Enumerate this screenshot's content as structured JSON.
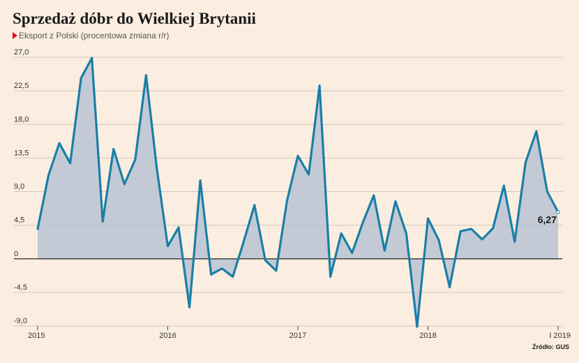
{
  "header": {
    "title": "Sprzedaż dóbr do Wielkiej Brytanii",
    "subtitle": "Eksport z Polski (procentowa zmiana r/r)"
  },
  "source": "Źródło: GUS",
  "colors": {
    "background": "#fbeee0",
    "line": "#1a7fa6",
    "area": "#b9c3d3",
    "grid": "#cfc6b9",
    "zero_line": "#222222",
    "subtitle_marker": "#e30613"
  },
  "chart_data": {
    "type": "area",
    "title": "Sprzedaż dóbr do Wielkiej Brytanii",
    "subtitle": "Eksport z Polski (procentowa zmiana r/r)",
    "ylim": [
      -9.0,
      27.0
    ],
    "yticks": [
      27.0,
      22.5,
      18.0,
      13.5,
      9.0,
      4.5,
      0,
      -4.5,
      -9.0
    ],
    "ytick_labels": [
      "27,0",
      "22,5",
      "18,0",
      "13,5",
      "9,0",
      "4,5",
      "0",
      "-4,5",
      "-9,0"
    ],
    "xticks": [
      {
        "label": "2015",
        "month_index": 0
      },
      {
        "label": "2016",
        "month_index": 12
      },
      {
        "label": "2017",
        "month_index": 24
      },
      {
        "label": "2018",
        "month_index": 36
      },
      {
        "label": "I 2019",
        "month_index": 48
      }
    ],
    "grid": true,
    "series": [
      {
        "values": [
          4.0,
          11.2,
          15.5,
          12.8,
          24.2,
          26.9,
          5.0,
          14.7,
          10.0,
          13.3,
          24.6,
          12.0,
          1.7,
          4.2,
          -6.5,
          10.5,
          -2.1,
          -1.3,
          -2.4,
          2.3,
          7.2,
          -0.2,
          -1.6,
          7.8,
          13.8,
          11.3,
          23.2,
          -2.4,
          3.4,
          0.8,
          4.9,
          8.5,
          1.1,
          7.7,
          3.4,
          -9.1,
          5.4,
          2.5,
          -3.8,
          3.7,
          4.0,
          2.6,
          4.1,
          9.8,
          2.3,
          12.9,
          17.1,
          9.0,
          6.27
        ],
        "last_label": "6,27"
      }
    ]
  }
}
